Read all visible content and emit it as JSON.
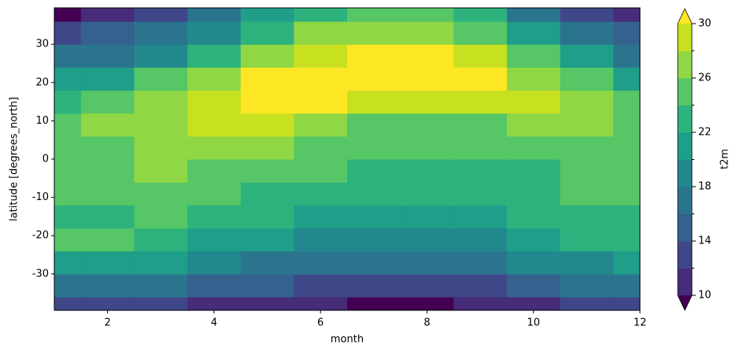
{
  "chart_data": {
    "type": "contourf",
    "xlabel": "month",
    "ylabel": "latitude [degrees_north]",
    "colorbar_label": "t2m",
    "x": [
      1,
      2,
      3,
      4,
      5,
      6,
      7,
      8,
      9,
      10,
      11,
      12
    ],
    "y": [
      -39,
      -33,
      -27,
      -21,
      -15,
      -9,
      -3,
      3,
      9,
      15,
      21,
      27,
      33,
      39
    ],
    "z": [
      [
        13,
        13,
        12.5,
        11.5,
        10.5,
        10,
        9.5,
        9.5,
        10.5,
        11.5,
        12.5,
        13
      ],
      [
        17.5,
        17.5,
        17,
        15.5,
        14,
        13,
        12.5,
        12.5,
        13.5,
        15,
        16.5,
        17
      ],
      [
        21,
        21,
        20.5,
        19,
        17.5,
        16.5,
        16,
        16,
        16.5,
        18,
        19.5,
        20.5
      ],
      [
        24.5,
        24,
        23,
        21.5,
        20,
        19,
        18.5,
        18.5,
        19,
        20.5,
        22,
        23
      ],
      [
        23.5,
        23.5,
        24,
        23,
        22,
        21,
        20.5,
        20.5,
        21,
        22,
        23,
        23.5
      ],
      [
        24.5,
        24.5,
        25,
        24.5,
        23.5,
        23,
        22,
        22,
        22.5,
        23,
        24,
        24.5
      ],
      [
        24.5,
        25,
        26,
        25.5,
        24.5,
        24,
        23.5,
        23,
        23,
        23.5,
        24,
        24.5
      ],
      [
        25,
        25.5,
        26.5,
        27,
        26,
        25,
        24.5,
        24.5,
        24.5,
        24.5,
        24.5,
        25
      ],
      [
        25.5,
        26,
        27,
        28,
        28,
        26.5,
        25.5,
        25,
        25.5,
        26,
        26,
        25.5
      ],
      [
        23,
        24,
        26,
        29,
        30.5,
        30.5,
        29,
        28.5,
        29,
        28.5,
        26,
        24
      ],
      [
        20,
        21,
        24,
        27,
        30.5,
        31,
        31,
        31,
        30.5,
        27,
        24,
        21
      ],
      [
        16,
        17,
        19,
        23,
        27,
        29,
        30.5,
        30,
        28,
        24,
        20,
        17
      ],
      [
        13,
        14,
        16,
        19,
        23,
        26,
        27,
        27,
        25,
        21,
        17,
        14
      ],
      [
        9,
        11,
        13,
        16,
        20,
        23,
        25,
        24.5,
        22,
        17,
        13,
        10
      ]
    ],
    "levels": [
      10,
      12,
      14,
      16,
      18,
      20,
      22,
      24,
      26,
      28,
      30
    ],
    "extend": "both",
    "colors": [
      "#440154",
      "#472c7a",
      "#3f4788",
      "#34618d",
      "#2b748e",
      "#23888e",
      "#1f9e89",
      "#2db27d",
      "#56c667",
      "#8fd744",
      "#c7e020",
      "#fde725"
    ],
    "colorbar_ticks": [
      10,
      14,
      18,
      22,
      26,
      30
    ],
    "xlim": [
      1,
      12
    ],
    "ylim": [
      -39.5,
      39.5
    ],
    "xticks": [
      2,
      4,
      6,
      8,
      10,
      12
    ],
    "yticks": [
      -30,
      -20,
      -10,
      0,
      10,
      20,
      30
    ]
  }
}
